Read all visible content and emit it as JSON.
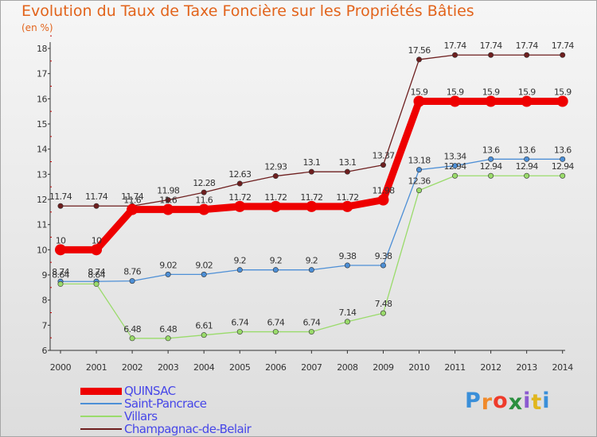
{
  "chart_data": {
    "type": "line",
    "title": "Evolution du Taux de Taxe Foncière sur les Propriétés Bâties",
    "unit_label": "(en %)",
    "xlabel": "",
    "ylabel": "",
    "ylim": [
      6,
      18
    ],
    "yticks": [
      "6",
      "7",
      "8",
      "9",
      "10",
      "11",
      "12",
      "13",
      "14",
      "15",
      "16",
      "17",
      "18"
    ],
    "grid": false,
    "legend_position": "bottom-left",
    "categories": [
      "2000",
      "2001",
      "2002",
      "2003",
      "2004",
      "2005",
      "2006",
      "2007",
      "2008",
      "2009",
      "2010",
      "2011",
      "2012",
      "2013",
      "2014"
    ],
    "series": [
      {
        "name": "QUINSAC",
        "color": "#ee0000",
        "values": [
          10,
          10,
          11.6,
          11.6,
          11.6,
          11.72,
          11.72,
          11.72,
          11.72,
          11.98,
          15.9,
          15.9,
          15.9,
          15.9,
          15.9
        ],
        "labels": [
          "10",
          "10",
          "11.6",
          "11.6",
          "11.6",
          "11.72",
          "11.72",
          "11.72",
          "11.72",
          "11.98",
          "15.9",
          "15.9",
          "15.9",
          "15.9",
          "15.9"
        ]
      },
      {
        "name": "Saint-Pancrace",
        "color": "#4d8fd6",
        "values": [
          8.74,
          8.74,
          8.76,
          9.02,
          9.02,
          9.2,
          9.2,
          9.2,
          9.38,
          9.38,
          13.18,
          13.34,
          13.6,
          13.6,
          13.6
        ],
        "labels": [
          "8.74",
          "8.74",
          "8.76",
          "9.02",
          "9.02",
          "9.2",
          "9.2",
          "9.2",
          "9.38",
          "9.38",
          "13.18",
          "13.34",
          "13.6",
          "13.6",
          "13.6"
        ]
      },
      {
        "name": "Villars",
        "color": "#9adb6b",
        "values": [
          8.64,
          8.64,
          6.48,
          6.48,
          6.61,
          6.74,
          6.74,
          6.74,
          7.14,
          7.48,
          12.36,
          12.94,
          12.94,
          12.94,
          12.94
        ],
        "labels": [
          "8.64",
          "8.64",
          "6.48",
          "6.48",
          "6.61",
          "6.74",
          "6.74",
          "6.74",
          "7.14",
          "7.48",
          "12.36",
          "12.94",
          "12.94",
          "12.94",
          "12.94"
        ]
      },
      {
        "name": "Champagnac-de-Belair",
        "color": "#6e1f1f",
        "values": [
          11.74,
          11.74,
          11.74,
          11.98,
          12.28,
          12.63,
          12.93,
          13.1,
          13.1,
          13.37,
          17.56,
          17.74,
          17.74,
          17.74,
          17.74
        ],
        "labels": [
          "11.74",
          "11.74",
          "11.74",
          "11.98",
          "12.28",
          "12.63",
          "12.93",
          "13.1",
          "13.1",
          "13.37",
          "17.56",
          "17.74",
          "17.74",
          "17.74",
          "17.74"
        ]
      }
    ]
  },
  "logo": {
    "letters": [
      "P",
      "r",
      "o",
      "x",
      "i",
      "t",
      "i"
    ],
    "colors": [
      "#3a8fd9",
      "#f08a2b",
      "#ee3b2b",
      "#2a8f3f",
      "#8b5ad0",
      "#e0b61e",
      "#3a8fd9"
    ]
  }
}
